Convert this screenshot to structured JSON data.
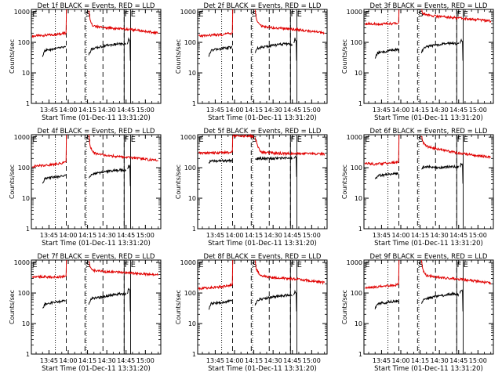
{
  "figure": {
    "x_tick_labels": [
      "13:45",
      "14:00",
      "14:15",
      "14:30",
      "14:45",
      "15:00"
    ],
    "x_ticks_min": [
      825,
      840,
      855,
      870,
      885,
      900
    ],
    "x_range_min": [
      811.33,
      912
    ],
    "y_tick_labels": [
      "1",
      "10",
      "100",
      "1000"
    ],
    "y_range": [
      1,
      1200
    ],
    "y_log": true,
    "xlabel": "Start Time (01-Dec-11 13:31:20)",
    "ylabel": "Counts/sec",
    "colors": {
      "events": "#000000",
      "lld": "#e00000",
      "axes": "#000000"
    },
    "markers": [
      {
        "label": "E",
        "min": 811.5,
        "style": "none"
      },
      {
        "label": "S",
        "min": 853.0,
        "style": "dashed"
      },
      {
        "label": "F",
        "min": 883.0,
        "style": "solid"
      },
      {
        "label": "E",
        "min": 888.0,
        "style": "solid"
      }
    ],
    "dotted_lines_min": [
      830,
      854
    ],
    "dashed_lines_min": [
      838.5,
      853,
      867,
      883.5
    ],
    "solid_lines_min": [
      883.5,
      888.5
    ]
  },
  "chart_data": [
    {
      "type": "line",
      "title": "Det 1f BLACK = Events, RED = LLD",
      "series": [
        {
          "key": "lld",
          "segments": [
            {
              "x": [
                812,
                830,
                838
              ],
              "y": [
                160,
                180,
                200
              ]
            },
            {
              "x": [
                838.3,
                838.6
              ],
              "y": [
                200,
                1200
              ]
            },
            {
              "x": [
                856,
                857,
                858,
                860,
                870,
                880,
                885,
                890,
                900,
                910
              ],
              "y": [
                1200,
                600,
                400,
                330,
                300,
                280,
                270,
                260,
                230,
                200
              ]
            }
          ]
        },
        {
          "key": "events",
          "segments": [
            {
              "x": [
                820,
                822,
                838
              ],
              "y": [
                35,
                55,
                70
              ]
            },
            {
              "x": [
                856,
                858,
                870,
                880,
                885
              ],
              "y": [
                40,
                60,
                80,
                90,
                85
              ]
            },
            {
              "x": [
                886,
                887,
                888,
                888.3
              ],
              "y": [
                95,
                130,
                110,
                25
              ]
            }
          ]
        }
      ]
    },
    {
      "type": "line",
      "title": "Det 2f BLACK = Events, RED = LLD",
      "series": [
        {
          "key": "lld",
          "segments": [
            {
              "x": [
                812,
                830,
                838
              ],
              "y": [
                160,
                180,
                200
              ]
            },
            {
              "x": [
                838.3,
                838.6
              ],
              "y": [
                200,
                1200
              ]
            },
            {
              "x": [
                856,
                857,
                860,
                870,
                880,
                885,
                890,
                900,
                910
              ],
              "y": [
                1200,
                600,
                350,
                300,
                280,
                270,
                260,
                230,
                200
              ]
            }
          ]
        },
        {
          "key": "events",
          "segments": [
            {
              "x": [
                820,
                822,
                838
              ],
              "y": [
                35,
                55,
                70
              ]
            },
            {
              "x": [
                856,
                858,
                870,
                880,
                885
              ],
              "y": [
                45,
                65,
                80,
                90,
                85
              ]
            },
            {
              "x": [
                886,
                887,
                888,
                888.3
              ],
              "y": [
                95,
                130,
                110,
                25
              ]
            }
          ]
        }
      ]
    },
    {
      "type": "line",
      "title": "Det 3f BLACK = Events, RED = LLD",
      "series": [
        {
          "key": "lld",
          "segments": [
            {
              "x": [
                812,
                820,
                838
              ],
              "y": [
                420,
                400,
                420
              ]
            },
            {
              "x": [
                838.3,
                838.6
              ],
              "y": [
                420,
                1200
              ]
            },
            {
              "x": [
                856,
                857,
                860,
                870,
                880,
                885,
                890,
                900,
                910
              ],
              "y": [
                1200,
                900,
                800,
                700,
                650,
                630,
                600,
                550,
                500
              ]
            }
          ]
        },
        {
          "key": "events",
          "segments": [
            {
              "x": [
                820,
                822,
                838
              ],
              "y": [
                30,
                45,
                60
              ]
            },
            {
              "x": [
                856,
                858,
                870,
                880,
                885
              ],
              "y": [
                45,
                70,
                85,
                95,
                90
              ]
            },
            {
              "x": [
                886,
                887,
                888,
                888.3
              ],
              "y": [
                95,
                120,
                105,
                25
              ]
            }
          ]
        }
      ]
    },
    {
      "type": "line",
      "title": "Det 4f BLACK = Events, RED = LLD",
      "series": [
        {
          "key": "lld",
          "segments": [
            {
              "x": [
                812,
                830,
                838
              ],
              "y": [
                110,
                130,
                150
              ]
            },
            {
              "x": [
                838.3,
                838.6
              ],
              "y": [
                150,
                1200
              ]
            },
            {
              "x": [
                856,
                857,
                860,
                870,
                880,
                885,
                890,
                900,
                910
              ],
              "y": [
                1200,
                500,
                300,
                250,
                230,
                220,
                210,
                190,
                170
              ]
            }
          ]
        },
        {
          "key": "events",
          "segments": [
            {
              "x": [
                820,
                822,
                838
              ],
              "y": [
                30,
                45,
                55
              ]
            },
            {
              "x": [
                856,
                858,
                870,
                880,
                885
              ],
              "y": [
                45,
                60,
                75,
                85,
                80
              ]
            },
            {
              "x": [
                886,
                887,
                888,
                888.3
              ],
              "y": [
                90,
                115,
                100,
                25
              ]
            }
          ]
        }
      ]
    },
    {
      "type": "line",
      "title": "Det 5f BLACK = Events, RED = LLD",
      "series": [
        {
          "key": "lld",
          "segments": [
            {
              "x": [
                812,
                830,
                838
              ],
              "y": [
                300,
                310,
                320
              ]
            },
            {
              "x": [
                838.3,
                838.6
              ],
              "y": [
                320,
                1100
              ]
            },
            {
              "x": [
                838.6,
                850,
                855
              ],
              "y": [
                1100,
                1100,
                1050
              ]
            },
            {
              "x": [
                856,
                858,
                860,
                870,
                880,
                885,
                890,
                900,
                910
              ],
              "y": [
                1000,
                500,
                330,
                300,
                290,
                290,
                290,
                290,
                285
              ]
            }
          ]
        },
        {
          "key": "events",
          "segments": [
            {
              "x": [
                820,
                822,
                838
              ],
              "y": [
                150,
                165,
                170
              ]
            },
            {
              "x": [
                856,
                858,
                870,
                880,
                885
              ],
              "y": [
                190,
                200,
                200,
                210,
                200
              ]
            },
            {
              "x": [
                886,
                887,
                888,
                888.3
              ],
              "y": [
                210,
                220,
                210,
                50
              ]
            }
          ]
        }
      ]
    },
    {
      "type": "line",
      "title": "Det 6f BLACK = Events, RED = LLD",
      "series": [
        {
          "key": "lld",
          "segments": [
            {
              "x": [
                812,
                820,
                838
              ],
              "y": [
                140,
                130,
                150
              ]
            },
            {
              "x": [
                838.3,
                838.6
              ],
              "y": [
                150,
                1200
              ]
            },
            {
              "x": [
                856,
                857,
                860,
                870,
                880,
                885,
                890,
                900,
                910
              ],
              "y": [
                1200,
                700,
                500,
                400,
                330,
                300,
                280,
                250,
                220
              ]
            }
          ]
        },
        {
          "key": "events",
          "segments": [
            {
              "x": [
                820,
                822,
                838
              ],
              "y": [
                40,
                55,
                65
              ]
            },
            {
              "x": [
                856,
                858,
                870,
                880,
                885
              ],
              "y": [
                90,
                110,
                100,
                110,
                105
              ]
            },
            {
              "x": [
                886,
                887,
                888,
                888.3
              ],
              "y": [
                110,
                140,
                120,
                30
              ]
            }
          ]
        }
      ]
    },
    {
      "type": "line",
      "title": "Det 7f BLACK = Events, RED = LLD",
      "series": [
        {
          "key": "lld",
          "segments": [
            {
              "x": [
                812,
                830,
                838
              ],
              "y": [
                350,
                330,
                350
              ]
            },
            {
              "x": [
                838.3,
                838.6
              ],
              "y": [
                350,
                1200
              ]
            },
            {
              "x": [
                856,
                857,
                860,
                870,
                880,
                885,
                890,
                900,
                910
              ],
              "y": [
                1200,
                700,
                550,
                500,
                480,
                470,
                450,
                420,
                390
              ]
            }
          ]
        },
        {
          "key": "events",
          "segments": [
            {
              "x": [
                820,
                822,
                838
              ],
              "y": [
                30,
                45,
                55
              ]
            },
            {
              "x": [
                856,
                858,
                870,
                880,
                885
              ],
              "y": [
                45,
                65,
                80,
                95,
                90
              ]
            },
            {
              "x": [
                886,
                887,
                888,
                888.3
              ],
              "y": [
                100,
                140,
                120,
                25
              ]
            }
          ]
        }
      ]
    },
    {
      "type": "line",
      "title": "Det 8f BLACK = Events, RED = LLD",
      "series": [
        {
          "key": "lld",
          "segments": [
            {
              "x": [
                812,
                830,
                838
              ],
              "y": [
                140,
                160,
                180
              ]
            },
            {
              "x": [
                838.3,
                838.6
              ],
              "y": [
                180,
                1200
              ]
            },
            {
              "x": [
                856,
                857,
                860,
                870,
                880,
                885,
                890,
                900,
                910
              ],
              "y": [
                1200,
                600,
                380,
                320,
                300,
                290,
                280,
                250,
                220
              ]
            }
          ]
        },
        {
          "key": "events",
          "segments": [
            {
              "x": [
                820,
                822,
                838
              ],
              "y": [
                30,
                45,
                55
              ]
            },
            {
              "x": [
                856,
                858,
                870,
                880,
                885
              ],
              "y": [
                40,
                60,
                75,
                85,
                80
              ]
            },
            {
              "x": [
                886,
                887,
                888,
                888.3
              ],
              "y": [
                90,
                115,
                100,
                25
              ]
            }
          ]
        }
      ]
    },
    {
      "type": "line",
      "title": "Det 9f BLACK = Events, RED = LLD",
      "series": [
        {
          "key": "lld",
          "segments": [
            {
              "x": [
                812,
                830,
                838
              ],
              "y": [
                150,
                170,
                190
              ]
            },
            {
              "x": [
                838.3,
                838.6
              ],
              "y": [
                190,
                1200
              ]
            },
            {
              "x": [
                856,
                857,
                860,
                870,
                880,
                885,
                890,
                900,
                910
              ],
              "y": [
                1200,
                600,
                380,
                320,
                300,
                290,
                270,
                240,
                210
              ]
            }
          ]
        },
        {
          "key": "events",
          "segments": [
            {
              "x": [
                820,
                822,
                838
              ],
              "y": [
                30,
                45,
                55
              ]
            },
            {
              "x": [
                856,
                858,
                870,
                880,
                885
              ],
              "y": [
                45,
                65,
                80,
                95,
                90
              ]
            },
            {
              "x": [
                886,
                887,
                888,
                888.3
              ],
              "y": [
                100,
                130,
                110,
                25
              ]
            }
          ]
        }
      ]
    }
  ]
}
